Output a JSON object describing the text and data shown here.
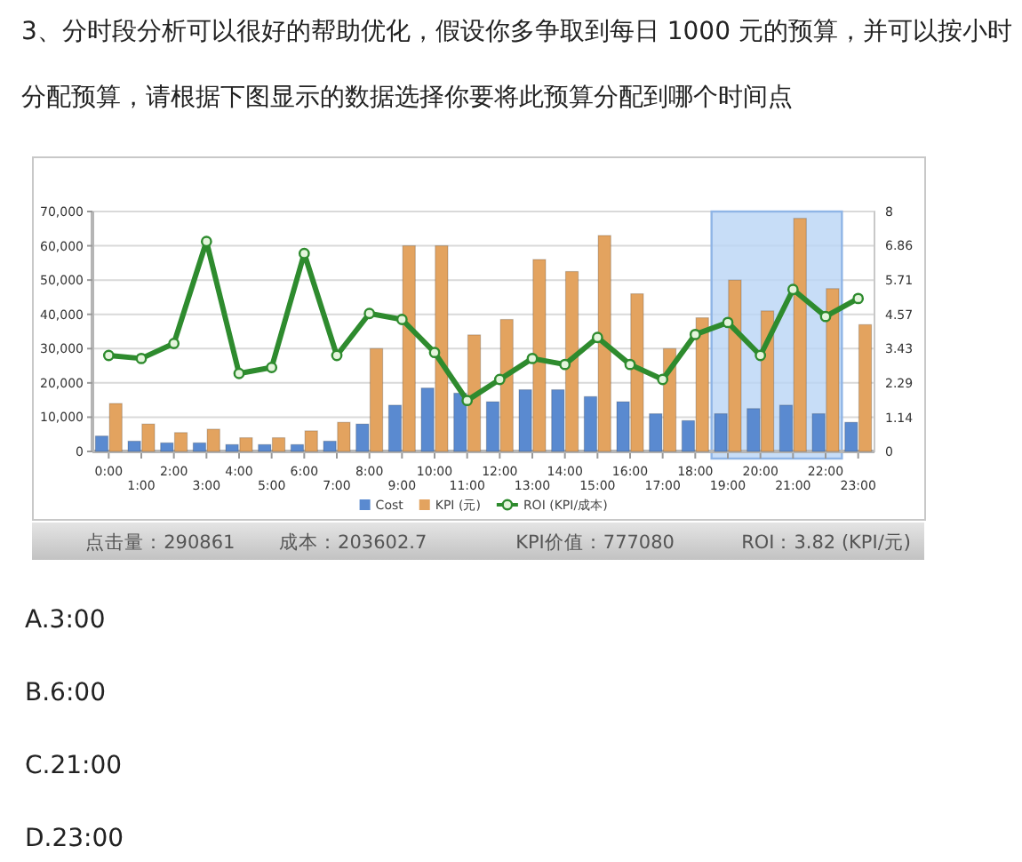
{
  "chart_data": {
    "type": "bar",
    "title": "3、分时段分析可以很好的帮助优化，假设你多争取到每日 1000 元的预算，并可以按小时分配预算，请根据下图显示的数据选择你要将此预算分配到哪个时间点",
    "categories": [
      "0:00",
      "1:00",
      "2:00",
      "3:00",
      "4:00",
      "5:00",
      "6:00",
      "7:00",
      "8:00",
      "9:00",
      "10:00",
      "11:00",
      "12:00",
      "13:00",
      "14:00",
      "15:00",
      "16:00",
      "17:00",
      "18:00",
      "19:00",
      "20:00",
      "21:00",
      "22:00",
      "23:00"
    ],
    "series": [
      {
        "name": "Cost",
        "color": "#5a8ad0",
        "values": [
          4500,
          3000,
          2500,
          2500,
          2000,
          2000,
          2000,
          3000,
          8000,
          13500,
          18500,
          17000,
          14500,
          18000,
          18000,
          16000,
          14500,
          11000,
          9000,
          11000,
          12500,
          13500,
          11000,
          8500
        ]
      },
      {
        "name": "KPI (元)",
        "color": "#e3a35f",
        "values": [
          14000,
          8000,
          5500,
          6500,
          4000,
          4000,
          6000,
          8500,
          30000,
          60000,
          60000,
          34000,
          38500,
          56000,
          52500,
          63000,
          46000,
          30000,
          39000,
          50000,
          41000,
          68000,
          47500,
          37000
        ]
      },
      {
        "name": "ROI (KPI/成本)",
        "type": "line",
        "axis": "y2",
        "color": "#2e8b2e",
        "values": [
          3.2,
          3.1,
          3.6,
          7.0,
          2.6,
          2.8,
          6.6,
          3.2,
          4.6,
          4.4,
          3.3,
          1.7,
          2.4,
          3.1,
          2.9,
          3.8,
          2.9,
          2.4,
          3.9,
          4.3,
          3.2,
          5.4,
          4.5,
          5.1
        ]
      }
    ],
    "ylim": [
      0,
      70000
    ],
    "yticks": [
      0,
      {
        "value": 10000,
        "label": "10,000"
      },
      {
        "value": 20000,
        "label": "20,000"
      },
      {
        "value": 30000,
        "label": "30,000"
      },
      {
        "value": 40000,
        "label": "40,000"
      },
      {
        "value": 50000,
        "label": "50,000"
      },
      {
        "value": 60000,
        "label": "60,000"
      },
      {
        "value": 70000,
        "label": "70,000"
      }
    ],
    "y2lim": [
      0,
      8
    ],
    "y2ticks": [
      0,
      1.14,
      2.29,
      3.43,
      4.57,
      5.71,
      6.86,
      8
    ],
    "grid": "y",
    "legend": "bottom",
    "marker": "circle",
    "bands": [
      {
        "axis": "x",
        "from": "19:00",
        "to": "22:00",
        "color": "#b9d5f5"
      }
    ],
    "annotations": [
      "点击量：290861",
      "成本：203602.7",
      "KPI价值：777080",
      "ROI：3.82 (KPI/元)",
      "A.3:00",
      "B.6:00",
      "C.21:00",
      "D.23:00"
    ]
  }
}
